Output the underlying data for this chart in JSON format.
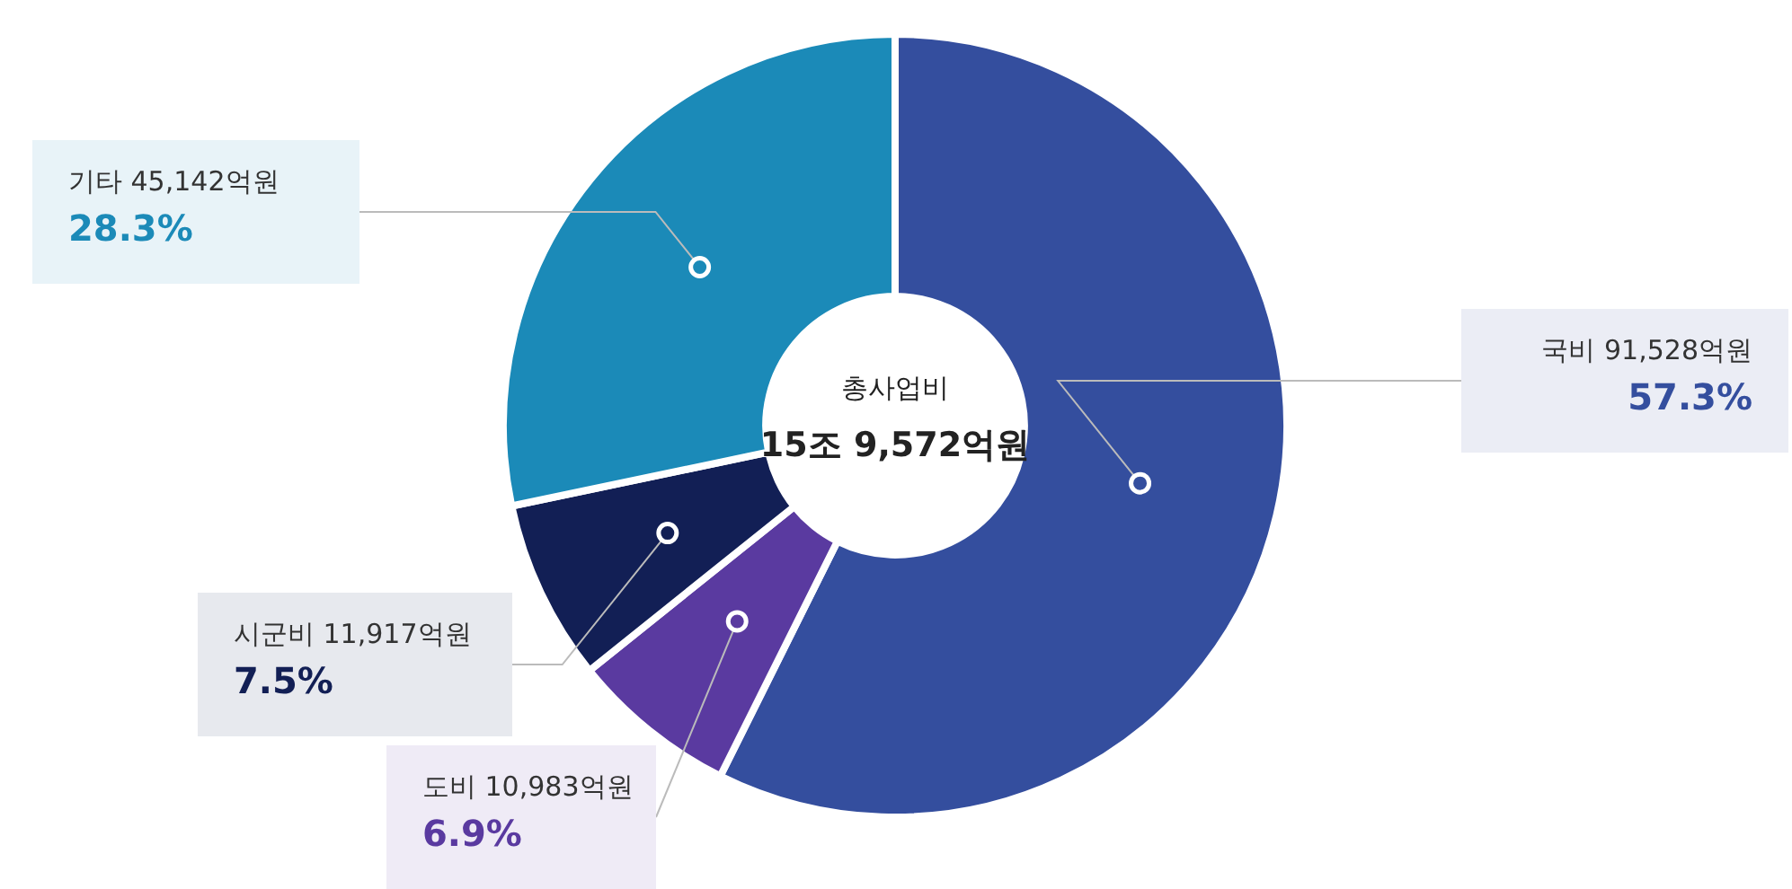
{
  "chart_data": {
    "type": "donut",
    "categories": [
      "국비",
      "도비",
      "시군비",
      "기타"
    ],
    "values": [
      91528,
      10983,
      11917,
      45142
    ],
    "colors": [
      "#344e9e",
      "#5a3aa0",
      "#121f55",
      "#1b8ab8"
    ],
    "value_labels": [
      "91,528억원",
      "10,983억원",
      "11,917억원",
      "45,142억원"
    ],
    "annotations": [
      "총사업비",
      "15조 9,572억원",
      {
        "text": "57.3%",
        "x": "국비"
      },
      {
        "text": "6.9%",
        "x": "도비"
      },
      {
        "text": "7.5%",
        "x": "시군비"
      },
      {
        "text": "28.3%",
        "x": "기타"
      }
    ],
    "legend": false
  }
}
